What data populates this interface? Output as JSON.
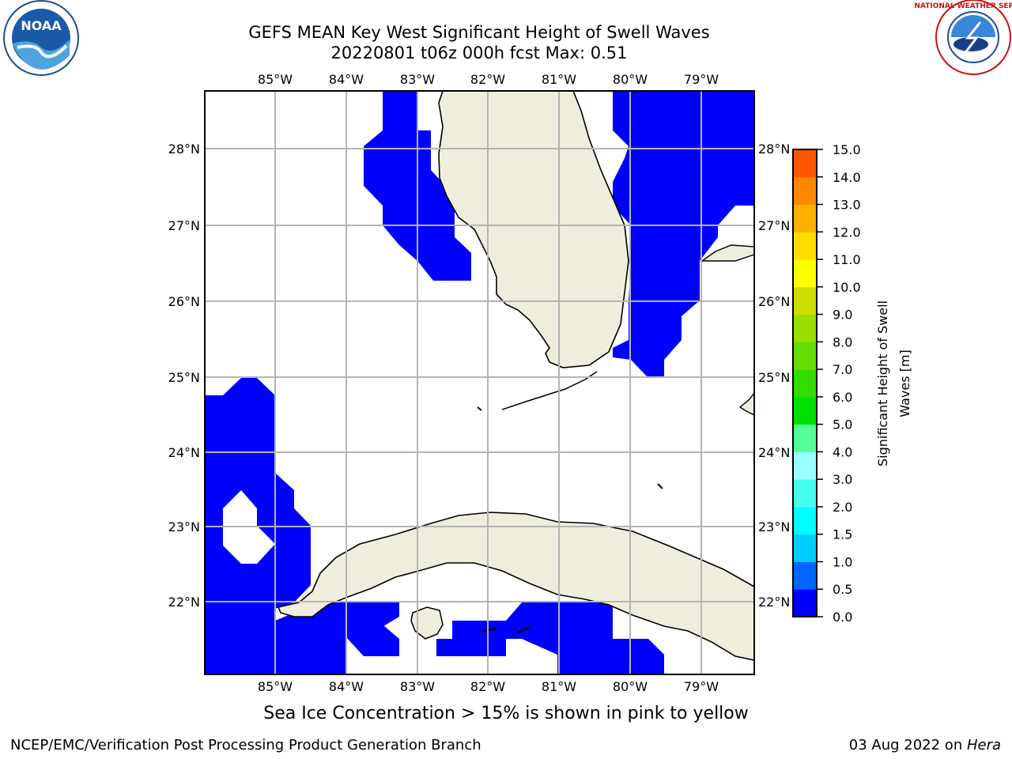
{
  "header": {
    "title_line1": "GEFS MEAN Key West Significant Height of Swell Waves",
    "title_line2": "20220801 t06z 000h fcst   Max: 0.51"
  },
  "logos": {
    "left": {
      "icon": "noaa-logo",
      "text": "NOAA"
    },
    "right": {
      "icon": "nws-logo",
      "text": "NATIONAL WEATHER SERVICE"
    }
  },
  "map": {
    "lon_labels": [
      "85°W",
      "84°W",
      "83°W",
      "82°W",
      "81°W",
      "80°W",
      "79°W"
    ],
    "lat_labels": [
      "28°N",
      "27°N",
      "26°N",
      "25°N",
      "24°N",
      "23°N",
      "22°N"
    ],
    "land_color": "#efeede",
    "wave_color": "#0000ff"
  },
  "colorbar": {
    "label": "Significant Height of Swell Waves [m]",
    "ticks": [
      "15.0",
      "14.0",
      "13.0",
      "12.0",
      "11.0",
      "10.0",
      "9.0",
      "8.0",
      "7.0",
      "6.0",
      "5.0",
      "4.0",
      "3.0",
      "2.0",
      "1.5",
      "1.0",
      "0.5",
      "0.0"
    ],
    "colors": [
      "#0000ff",
      "#0066ff",
      "#00ccff",
      "#00ffff",
      "#44ffee",
      "#99ffff",
      "#55ff99",
      "#00e000",
      "#33dd00",
      "#66dd00",
      "#99dd00",
      "#ccdd00",
      "#ffff00",
      "#ffdd00",
      "#ffb000",
      "#ff8800",
      "#ff5500",
      "#ff3300",
      "#ff0000"
    ]
  },
  "note": "Sea Ice Concentration > 15% is shown in pink to yellow",
  "footer": {
    "left": "NCEP/EMC/Verification Post Processing Product Generation Branch",
    "date": "03 Aug 2022 on ",
    "host": "Hera"
  }
}
